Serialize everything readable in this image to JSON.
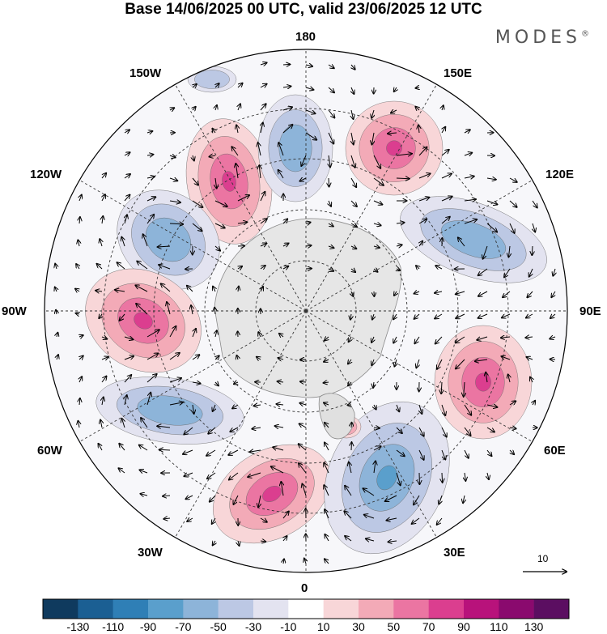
{
  "title": "Base 14/06/2025 00 UTC, valid 23/06/2025 12 UTC",
  "brand": "MODES",
  "brand_mark": "®",
  "longitude_labels": {
    "n180": "180",
    "w150": "150W",
    "e150": "150E",
    "w120": "120W",
    "e120": "120E",
    "w90": "90W",
    "e90": "90E",
    "w60": "60W",
    "e60": "60E",
    "w30": "30W",
    "e30": "30E",
    "s0": "0"
  },
  "vector_reference": {
    "label": "10"
  },
  "colorbar": {
    "ticks": [
      "-130",
      "-110",
      "-90",
      "-70",
      "-50",
      "-30",
      "-10",
      "10",
      "30",
      "50",
      "70",
      "90",
      "110",
      "130"
    ],
    "colors": [
      "#0f3a5e",
      "#1b5f93",
      "#2f7fb6",
      "#5a9fcc",
      "#8db4d9",
      "#bcc8e4",
      "#e3e3f0",
      "#ffffff",
      "#f8d6d8",
      "#f3aab7",
      "#eb75a2",
      "#db3e8f",
      "#b8127b",
      "#8a0a6e",
      "#5b0e61"
    ]
  },
  "anomaly_centers": [
    {
      "type": "positive",
      "level": 3
    },
    {
      "type": "negative",
      "level": 2
    },
    {
      "type": "positive",
      "level": 3
    },
    {
      "type": "negative",
      "level": 2
    },
    {
      "type": "positive",
      "level": 3
    },
    {
      "type": "negative",
      "level": 2
    },
    {
      "type": "positive",
      "level": 3
    },
    {
      "type": "negative",
      "level": 3
    },
    {
      "type": "positive",
      "level": 3
    },
    {
      "type": "negative",
      "level": 2
    },
    {
      "type": "positive",
      "level": 1
    },
    {
      "type": "negative",
      "level": 1
    }
  ]
}
